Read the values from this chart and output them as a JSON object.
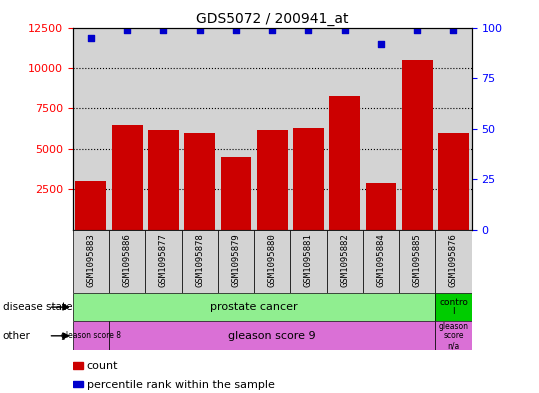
{
  "title": "GDS5072 / 200941_at",
  "samples": [
    "GSM1095883",
    "GSM1095886",
    "GSM1095877",
    "GSM1095878",
    "GSM1095879",
    "GSM1095880",
    "GSM1095881",
    "GSM1095882",
    "GSM1095884",
    "GSM1095885",
    "GSM1095876"
  ],
  "bar_values": [
    3000,
    6500,
    6200,
    6000,
    4500,
    6200,
    6300,
    8300,
    2900,
    10500,
    6000
  ],
  "percentile_values": [
    95,
    99,
    99,
    99,
    99,
    99,
    99,
    99,
    92,
    99,
    99
  ],
  "bar_color": "#cc0000",
  "dot_color": "#0000cc",
  "ylim_left": [
    0,
    12500
  ],
  "ylim_right": [
    0,
    100
  ],
  "yticks_left": [
    2500,
    5000,
    7500,
    10000,
    12500
  ],
  "yticks_right": [
    0,
    25,
    50,
    75,
    100
  ],
  "grid_values": [
    2500,
    5000,
    7500,
    10000
  ],
  "background_color": "#ffffff",
  "bar_width": 0.85,
  "col_bg_color": "#d3d3d3",
  "prostate_color": "#90ee90",
  "control_color": "#00cc00",
  "gleason_color": "#da70d6",
  "legend_items": [
    {
      "label": "count",
      "color": "#cc0000"
    },
    {
      "label": "percentile rank within the sample",
      "color": "#0000cc"
    }
  ]
}
